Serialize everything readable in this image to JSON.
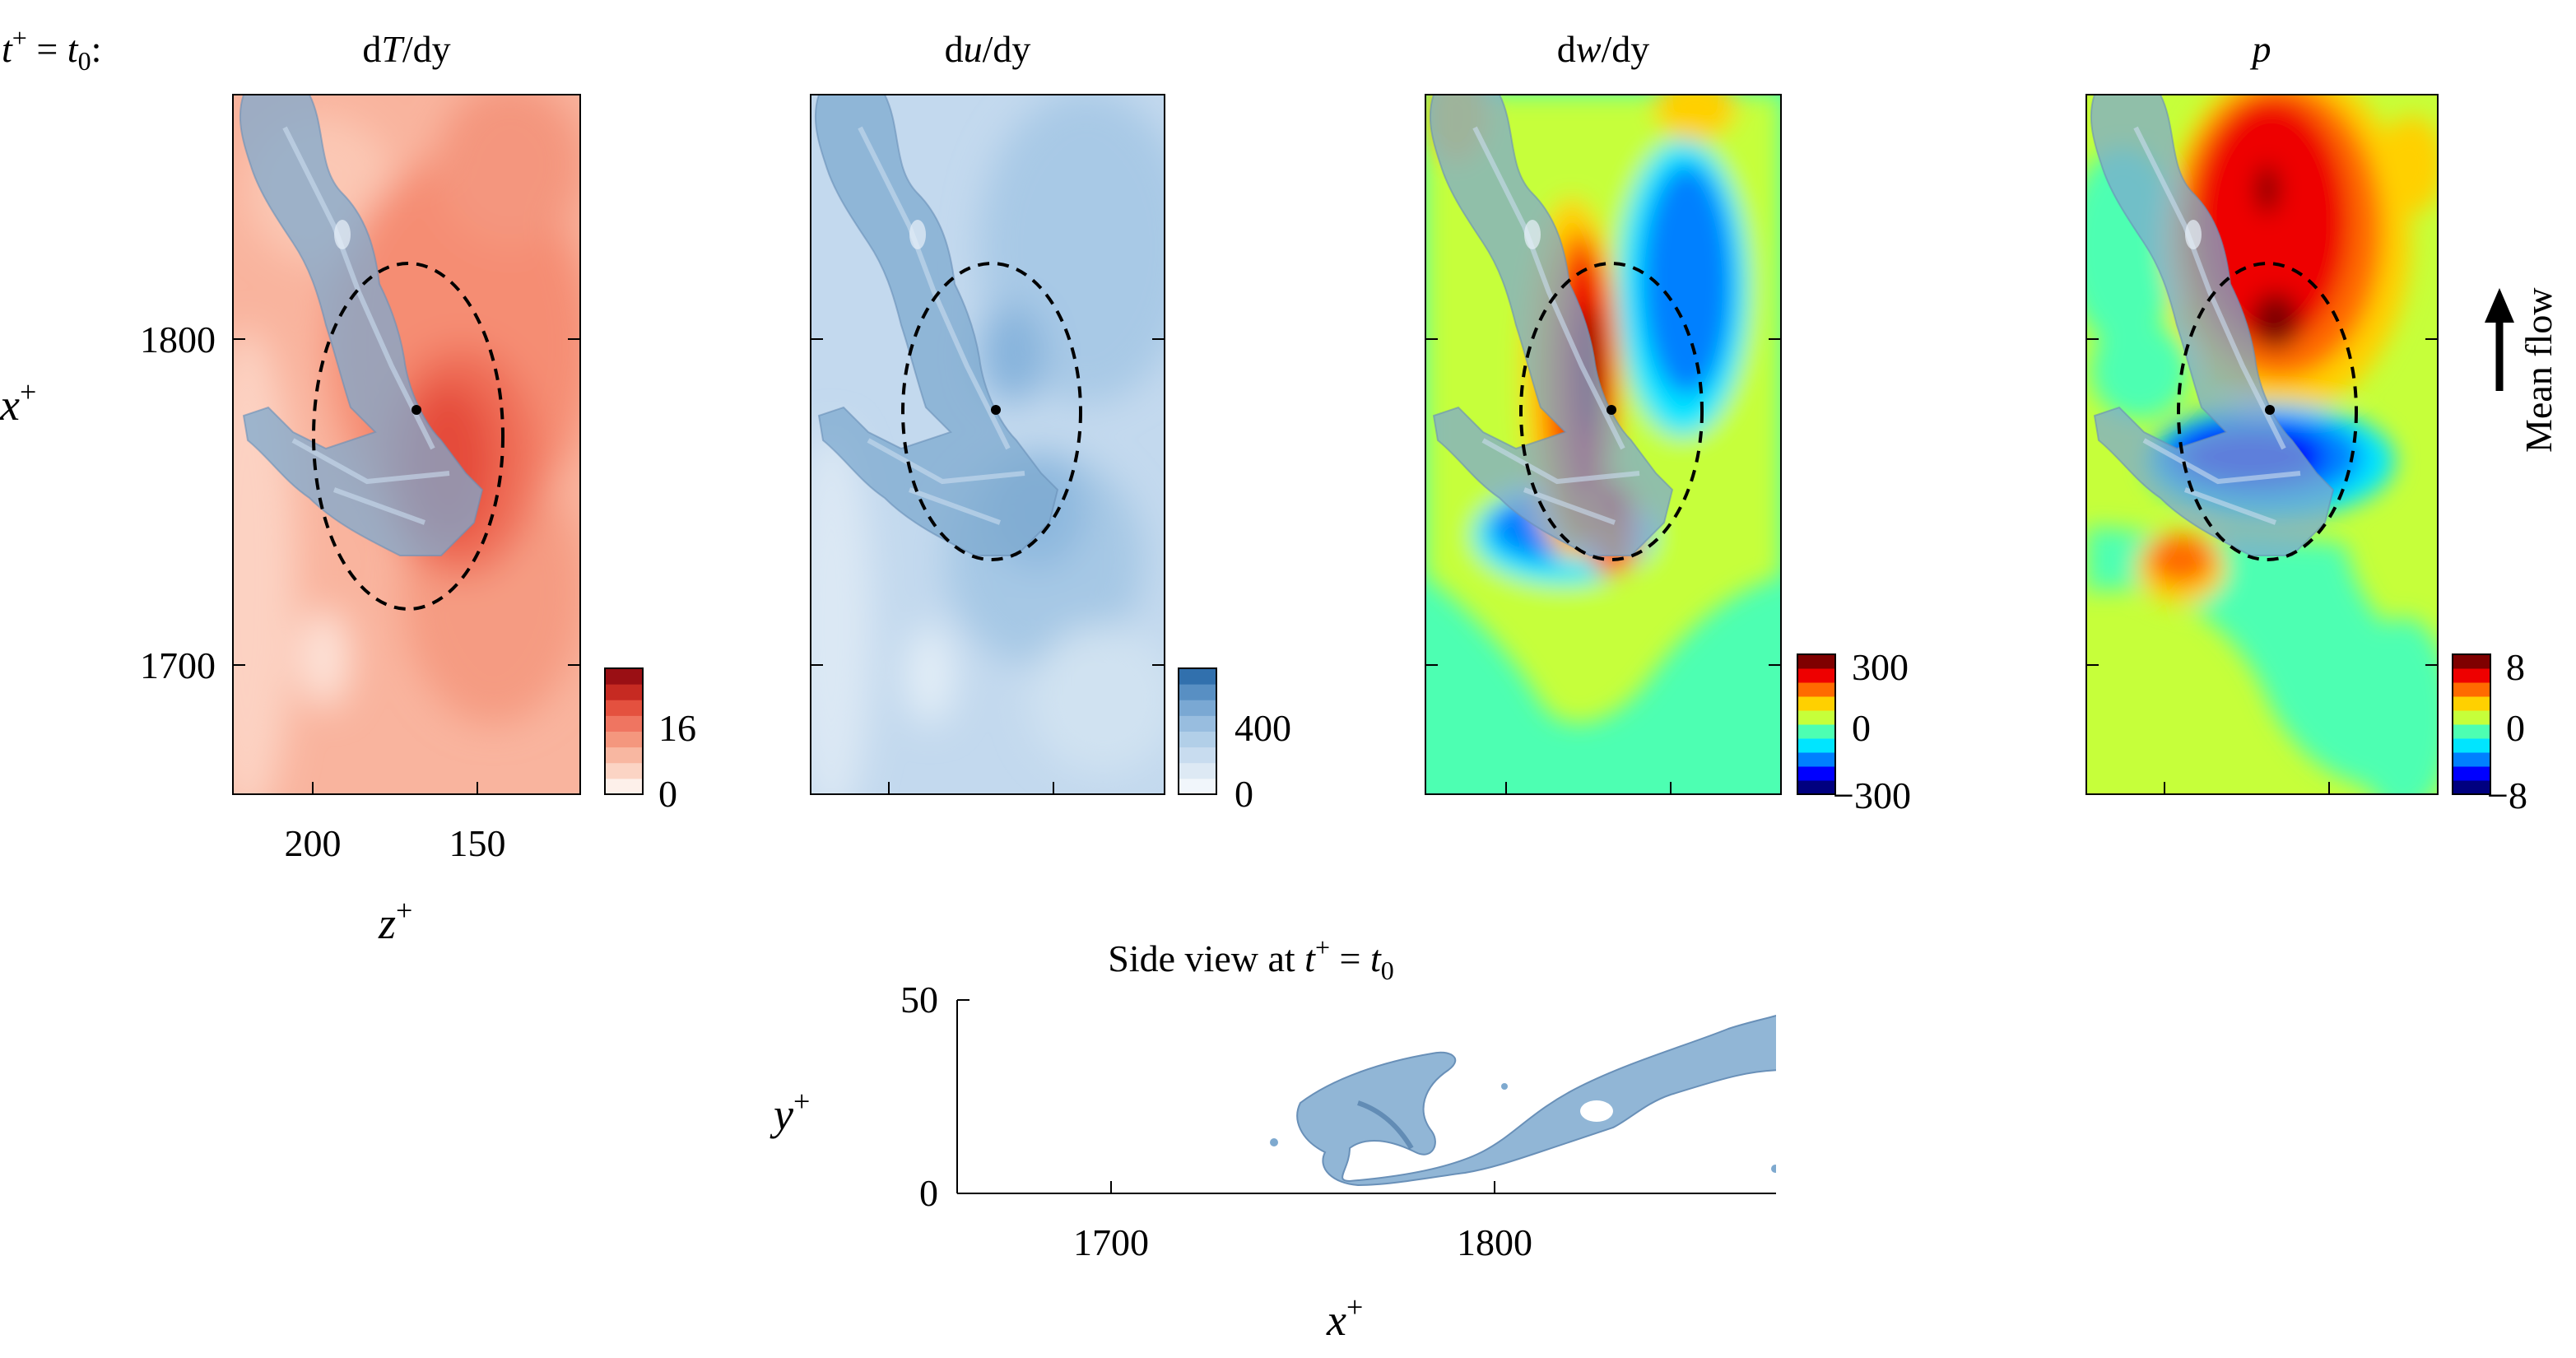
{
  "figure": {
    "time_label": {
      "pre": "t",
      "sup": "+",
      "eq": " = ",
      "var": "t",
      "sub": "0",
      "post": ":"
    },
    "panels": [
      {
        "id": "dTdy",
        "title": {
          "d1": "d",
          "var": "T",
          "rest": "/dy"
        },
        "colorbar": {
          "ticks": [
            "16",
            "0"
          ],
          "colors": [
            "#fdf0ea",
            "#fbd4c4",
            "#f8b7a1",
            "#f4977e",
            "#ef7561",
            "#e4513f",
            "#c62a22",
            "#9a0f14"
          ]
        }
      },
      {
        "id": "dudy",
        "title": {
          "d1": "d",
          "var": "u",
          "rest": "/dy"
        },
        "colorbar": {
          "ticks": [
            "400",
            "0"
          ],
          "colors": [
            "#f1f6fb",
            "#dde9f4",
            "#c8dcef",
            "#b2cfe8",
            "#98bddf",
            "#7aa8d3",
            "#588fc3",
            "#3170ad"
          ]
        }
      },
      {
        "id": "dwdy",
        "title": {
          "d1": "d",
          "var": "w",
          "rest": "/dy"
        },
        "colorbar": {
          "ticks": [
            "300",
            "0",
            "−300"
          ],
          "colors": [
            "#00007f",
            "#0000ff",
            "#0080ff",
            "#00e5ff",
            "#4dffb2",
            "#c6ff3a",
            "#ffd000",
            "#ff6a00",
            "#ee0000",
            "#7f0000"
          ]
        }
      },
      {
        "id": "p",
        "title": {
          "d1": "",
          "var": "p",
          "rest": ""
        },
        "colorbar": {
          "ticks": [
            "8",
            "0",
            "−8"
          ],
          "colors": [
            "#00007f",
            "#0000ff",
            "#0080ff",
            "#00e5ff",
            "#4dffb2",
            "#c6ff3a",
            "#ffd000",
            "#ff6a00",
            "#ee0000",
            "#7f0000"
          ]
        }
      }
    ],
    "x_axis_label": {
      "var": "x",
      "sup": "+"
    },
    "z_axis_label": {
      "var": "z",
      "sup": "+"
    },
    "x_ticks": [
      "1800",
      "1700"
    ],
    "z_ticks": [
      "200",
      "150"
    ],
    "mean_flow_label": "Mean flow",
    "side_view": {
      "title": {
        "pre": "Side view at ",
        "var": "t",
        "sup": "+",
        "eq": " = ",
        "var2": "t",
        "sub": "0"
      },
      "y_label": {
        "var": "y",
        "sup": "+"
      },
      "x_label": {
        "var": "x",
        "sup": "+"
      },
      "y_ticks": [
        "50",
        "0"
      ],
      "x_ticks": [
        "1700",
        "1800"
      ]
    }
  },
  "chart_data": [
    {
      "type": "heatmap",
      "title": "dT/dy",
      "xlabel": "z+",
      "ylabel": "x+",
      "x_ticks": [
        200,
        150
      ],
      "y_ticks": [
        1700,
        1800
      ],
      "ylim": [
        1660,
        1870
      ],
      "colorbar_range": [
        0,
        20
      ]
    },
    {
      "type": "heatmap",
      "title": "du/dy",
      "ylim": [
        1660,
        1870
      ],
      "colorbar_range": [
        0,
        500
      ]
    },
    {
      "type": "heatmap",
      "title": "dw/dy",
      "ylim": [
        1660,
        1870
      ],
      "colorbar_range": [
        -300,
        300
      ]
    },
    {
      "type": "heatmap",
      "title": "p",
      "ylim": [
        1660,
        1870
      ],
      "colorbar_range": [
        -8,
        8
      ]
    },
    {
      "type": "scatter",
      "title": "Side view at t+ = t0",
      "xlabel": "x+",
      "ylabel": "y+",
      "xlim": [
        1660,
        1870
      ],
      "ylim": [
        0,
        50
      ],
      "x_ticks": [
        1700,
        1800
      ],
      "y_ticks": [
        0,
        50
      ]
    }
  ]
}
